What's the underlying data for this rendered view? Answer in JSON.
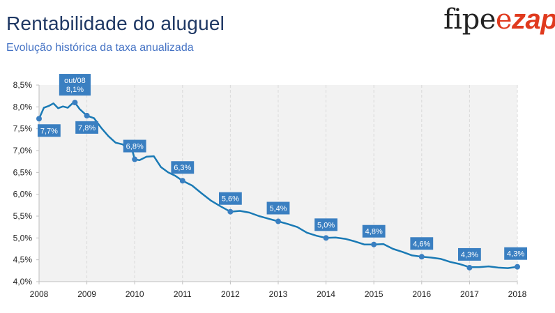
{
  "header": {
    "title": "Rentabilidade do aluguel",
    "subtitle": "Evolução histórica da taxa anualizada"
  },
  "logo": {
    "part1": "fipe",
    "part2": "e",
    "part3": "zap"
  },
  "colors": {
    "line": "#1a7ab5",
    "marker": "#3a7fc1",
    "label_bg": "#3a7fc1",
    "plot_bg": "#f2f2f2",
    "grid": "#d9d9d9"
  },
  "chart_data": {
    "type": "line",
    "title": "Rentabilidade do aluguel",
    "subtitle": "Evolução histórica da taxa anualizada",
    "ylim": [
      4.0,
      8.5
    ],
    "xlim": [
      2008,
      2018
    ],
    "y_ticks": [
      "4,0%",
      "4,5%",
      "5,0%",
      "5,5%",
      "6,0%",
      "6,5%",
      "7,0%",
      "7,5%",
      "8,0%",
      "8,5%"
    ],
    "y_tick_values": [
      4.0,
      4.5,
      5.0,
      5.5,
      6.0,
      6.5,
      7.0,
      7.5,
      8.0,
      8.5
    ],
    "x_ticks": [
      "2008",
      "2009",
      "2010",
      "2011",
      "2012",
      "2013",
      "2014",
      "2015",
      "2016",
      "2017",
      "2018"
    ],
    "x_tick_values": [
      2008,
      2009,
      2010,
      2011,
      2012,
      2013,
      2014,
      2015,
      2016,
      2017,
      2018
    ],
    "grid": "vertical",
    "series": [
      {
        "x": [
          2008.0,
          2008.1,
          2008.2,
          2008.3,
          2008.4,
          2008.5,
          2008.6,
          2008.7,
          2008.75,
          2008.85,
          2009.0,
          2009.15,
          2009.3,
          2009.45,
          2009.6,
          2009.75,
          2009.85,
          2009.95,
          2010.0,
          2010.1,
          2010.25,
          2010.4,
          2010.55,
          2010.7,
          2010.85,
          2011.0,
          2011.2,
          2011.4,
          2011.6,
          2011.8,
          2012.0,
          2012.2,
          2012.4,
          2012.6,
          2012.8,
          2013.0,
          2013.2,
          2013.4,
          2013.6,
          2013.8,
          2014.0,
          2014.2,
          2014.4,
          2014.6,
          2014.8,
          2015.0,
          2015.2,
          2015.4,
          2015.6,
          2015.8,
          2016.0,
          2016.2,
          2016.4,
          2016.6,
          2016.8,
          2017.0,
          2017.2,
          2017.4,
          2017.6,
          2017.8,
          2018.0
        ],
        "y": [
          7.73,
          7.98,
          8.02,
          8.08,
          7.97,
          8.01,
          7.98,
          8.08,
          8.1,
          7.95,
          7.8,
          7.74,
          7.52,
          7.33,
          7.18,
          7.14,
          7.02,
          7.0,
          6.8,
          6.78,
          6.86,
          6.87,
          6.62,
          6.5,
          6.42,
          6.31,
          6.2,
          6.02,
          5.85,
          5.72,
          5.6,
          5.62,
          5.58,
          5.5,
          5.44,
          5.38,
          5.32,
          5.25,
          5.12,
          5.05,
          5.0,
          5.01,
          4.98,
          4.92,
          4.85,
          4.85,
          4.86,
          4.75,
          4.68,
          4.6,
          4.57,
          4.55,
          4.52,
          4.45,
          4.4,
          4.33,
          4.33,
          4.35,
          4.32,
          4.31,
          4.34
        ]
      }
    ],
    "markers": [
      {
        "x": 2008.0,
        "y": 7.73,
        "label": "7,7%",
        "pos": "below"
      },
      {
        "x": 2008.75,
        "y": 8.1,
        "label": "out/08",
        "label2": "8,1%",
        "pos": "above"
      },
      {
        "x": 2009.0,
        "y": 7.8,
        "label": "7,8%",
        "pos": "below"
      },
      {
        "x": 2010.0,
        "y": 6.8,
        "label": "6,8%",
        "pos": "above"
      },
      {
        "x": 2011.0,
        "y": 6.31,
        "label": "6,3%",
        "pos": "above"
      },
      {
        "x": 2012.0,
        "y": 5.6,
        "label": "5,6%",
        "pos": "above"
      },
      {
        "x": 2013.0,
        "y": 5.38,
        "label": "5,4%",
        "pos": "above"
      },
      {
        "x": 2014.0,
        "y": 5.0,
        "label": "5,0%",
        "pos": "above"
      },
      {
        "x": 2015.0,
        "y": 4.85,
        "label": "4,8%",
        "pos": "above"
      },
      {
        "x": 2016.0,
        "y": 4.57,
        "label": "4,6%",
        "pos": "above"
      },
      {
        "x": 2017.0,
        "y": 4.32,
        "label": "4,3%",
        "pos": "above"
      },
      {
        "x": 2018.0,
        "y": 4.34,
        "label": "4,3%",
        "pos": "above"
      }
    ]
  }
}
